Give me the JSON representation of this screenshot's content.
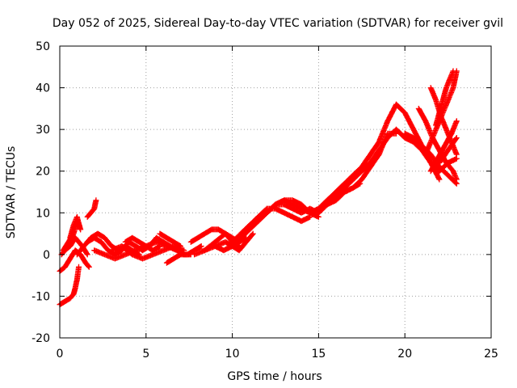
{
  "chart_data": {
    "type": "scatter",
    "title": "Day 052 of 2025, Sidereal Day-to-day VTEC variation (SDTVAR) for receiver gvil",
    "xlabel": "GPS time / hours",
    "ylabel": "SDTVAR / TECUs",
    "xlim": [
      0,
      25
    ],
    "ylim": [
      -20,
      50
    ],
    "x_ticks": [
      "0",
      "5",
      "10",
      "15",
      "20",
      "25"
    ],
    "y_ticks": [
      "-20",
      "-10",
      "0",
      "10",
      "20",
      "30",
      "40",
      "50"
    ],
    "grid": true,
    "legend": "none",
    "marker": "+",
    "colors": {
      "series": "#ff0000",
      "grid": "#a0a0a0",
      "axis": "#000000"
    },
    "series": [
      {
        "x": [
          0.0,
          0.2,
          0.4,
          0.6,
          0.8,
          0.9,
          1.0,
          1.1
        ],
        "y": [
          -12,
          -11.5,
          -11,
          -10.5,
          -9.5,
          -8,
          -6,
          -3
        ]
      },
      {
        "x": [
          0.0,
          0.3,
          0.6,
          0.9,
          1.2,
          1.5,
          1.7
        ],
        "y": [
          -4,
          -3,
          -1,
          1,
          0,
          -2,
          -3
        ]
      },
      {
        "x": [
          0.1,
          0.3,
          0.6,
          0.9,
          1.1,
          1.3,
          1.6
        ],
        "y": [
          0,
          1,
          2,
          4,
          3,
          2,
          0
        ]
      },
      {
        "x": [
          0.2,
          0.5,
          0.8,
          1.0,
          1.2
        ],
        "y": [
          1,
          3,
          5,
          8,
          6
        ]
      },
      {
        "x": [
          0.6,
          0.8,
          1.0,
          1.2
        ],
        "y": [
          4,
          7,
          9,
          6
        ]
      },
      {
        "x": [
          1.6,
          1.8,
          2.0,
          2.1
        ],
        "y": [
          9,
          10,
          11,
          13
        ]
      },
      {
        "x": [
          1.0,
          1.4,
          1.8,
          2.2,
          2.6,
          3.0,
          3.4,
          3.8,
          4.2,
          4.6
        ],
        "y": [
          0,
          2,
          4,
          5,
          4,
          2,
          1,
          2,
          1,
          0
        ]
      },
      {
        "x": [
          1.6,
          2.0,
          2.4,
          2.8,
          3.2,
          3.6,
          4.0,
          4.4,
          4.8,
          5.2,
          5.6,
          6.0,
          6.4,
          6.8,
          7.2,
          7.6
        ],
        "y": [
          3,
          4,
          3,
          1,
          0,
          1,
          3,
          2,
          1,
          2,
          4,
          3,
          2,
          1,
          0,
          0
        ]
      },
      {
        "x": [
          2.0,
          2.6,
          3.2,
          3.8,
          4.4,
          5.0,
          5.6,
          6.2,
          6.8
        ],
        "y": [
          1,
          0,
          -1,
          0,
          1,
          2,
          3,
          2,
          1
        ]
      },
      {
        "x": [
          3.0,
          3.6,
          4.2,
          4.8,
          5.4,
          6.0,
          6.6,
          7.2
        ],
        "y": [
          1,
          2,
          0,
          -1,
          0,
          1,
          2,
          1
        ]
      },
      {
        "x": [
          3.8,
          4.2,
          4.6,
          5.0,
          5.4,
          5.8
        ],
        "y": [
          3,
          4,
          3,
          2,
          1,
          2
        ]
      },
      {
        "x": [
          5.8,
          6.2,
          6.6,
          7.0
        ],
        "y": [
          5,
          4,
          3,
          2
        ]
      },
      {
        "x": [
          6.2,
          6.6,
          7.0,
          7.4,
          7.8,
          8.2
        ],
        "y": [
          -2,
          -1,
          0,
          0,
          1,
          2
        ]
      },
      {
        "x": [
          7.6,
          8.0,
          8.4,
          8.8,
          9.2,
          9.6,
          10.0,
          10.4
        ],
        "y": [
          3,
          4,
          5,
          6,
          6,
          5,
          3,
          2
        ]
      },
      {
        "x": [
          7.8,
          8.4,
          9.0,
          9.6,
          10.0,
          10.4,
          10.8
        ],
        "y": [
          0,
          1,
          3,
          5,
          4,
          3,
          4
        ]
      },
      {
        "x": [
          8.4,
          9.0,
          9.6,
          10.0,
          10.4,
          10.8,
          11.2
        ],
        "y": [
          1,
          2,
          3,
          2,
          1,
          3,
          5
        ]
      },
      {
        "x": [
          9.0,
          9.5,
          10.0,
          10.5,
          11.0,
          11.5,
          12.0,
          12.5,
          13.0,
          13.5,
          14.0,
          14.5
        ],
        "y": [
          2,
          1,
          2,
          4,
          6,
          8,
          10,
          12,
          13,
          13,
          12,
          10
        ]
      },
      {
        "x": [
          10.0,
          10.5,
          11.0,
          11.5,
          12.0,
          12.5,
          13.0,
          13.5,
          14.0,
          14.5
        ],
        "y": [
          3,
          5,
          7,
          9,
          11,
          11,
          10,
          9,
          8,
          9
        ]
      },
      {
        "x": [
          10.5,
          11.0,
          11.5,
          12.0,
          12.5,
          13.0,
          13.5,
          14.0,
          14.5,
          15.0
        ],
        "y": [
          5,
          7,
          9,
          10,
          12,
          13,
          12,
          11,
          10,
          9
        ]
      },
      {
        "x": [
          11.5,
          12.0,
          12.5,
          13.0,
          13.5,
          14.0,
          14.5,
          15.0
        ],
        "y": [
          8,
          10,
          12,
          12,
          11,
          10,
          11,
          10
        ]
      },
      {
        "x": [
          14.5,
          15.0,
          15.5,
          16.0,
          16.5,
          17.0,
          17.5,
          18.0,
          18.5,
          19.0,
          19.5
        ],
        "y": [
          10,
          11,
          13,
          15,
          17,
          19,
          21,
          24,
          27,
          32,
          36
        ]
      },
      {
        "x": [
          15.0,
          15.5,
          16.0,
          16.5,
          17.0,
          17.5,
          18.0,
          18.5,
          19.0,
          19.5,
          20.0
        ],
        "y": [
          10,
          12,
          14,
          16,
          18,
          20,
          22,
          25,
          28,
          30,
          28
        ]
      },
      {
        "x": [
          15.5,
          16.0,
          16.5,
          17.0,
          17.5,
          18.0,
          18.5,
          19.0,
          19.5
        ],
        "y": [
          12,
          13,
          15,
          16,
          18,
          21,
          24,
          29,
          29
        ]
      },
      {
        "x": [
          16.0,
          16.5,
          17.0,
          17.4
        ],
        "y": [
          13,
          15,
          16,
          17
        ]
      },
      {
        "x": [
          19.5,
          20.0,
          20.5,
          21.0,
          21.5,
          22.0
        ],
        "y": [
          36,
          34,
          30,
          26,
          22,
          18
        ]
      },
      {
        "x": [
          20.0,
          20.5,
          21.0,
          21.5,
          22.0,
          22.5,
          23.0
        ],
        "y": [
          28,
          27,
          25,
          22,
          20,
          22,
          23
        ]
      },
      {
        "x": [
          20.0,
          20.5,
          21.0,
          21.5,
          22.0,
          22.5,
          23.0
        ],
        "y": [
          29,
          28,
          26,
          24,
          21,
          19,
          17
        ]
      },
      {
        "x": [
          20.8,
          21.2,
          21.6,
          22.0,
          22.4,
          22.8,
          23.0
        ],
        "y": [
          35,
          32,
          28,
          25,
          22,
          20,
          18
        ]
      },
      {
        "x": [
          21.5,
          21.8,
          22.1,
          22.4,
          22.7,
          23.0
        ],
        "y": [
          40,
          37,
          33,
          30,
          27,
          24
        ]
      },
      {
        "x": [
          21.2,
          21.6,
          22.0,
          22.4,
          22.8,
          23.0
        ],
        "y": [
          24,
          28,
          32,
          36,
          40,
          44
        ]
      },
      {
        "x": [
          21.5,
          21.9,
          22.3,
          22.7,
          23.0
        ],
        "y": [
          20,
          23,
          26,
          29,
          32
        ]
      },
      {
        "x": [
          22.0,
          22.5,
          23.0
        ],
        "y": [
          22,
          25,
          28
        ]
      },
      {
        "x": [
          21.8,
          22.0,
          22.2,
          22.4,
          22.6,
          22.8
        ],
        "y": [
          31,
          34,
          37,
          40,
          42,
          44
        ]
      }
    ]
  }
}
